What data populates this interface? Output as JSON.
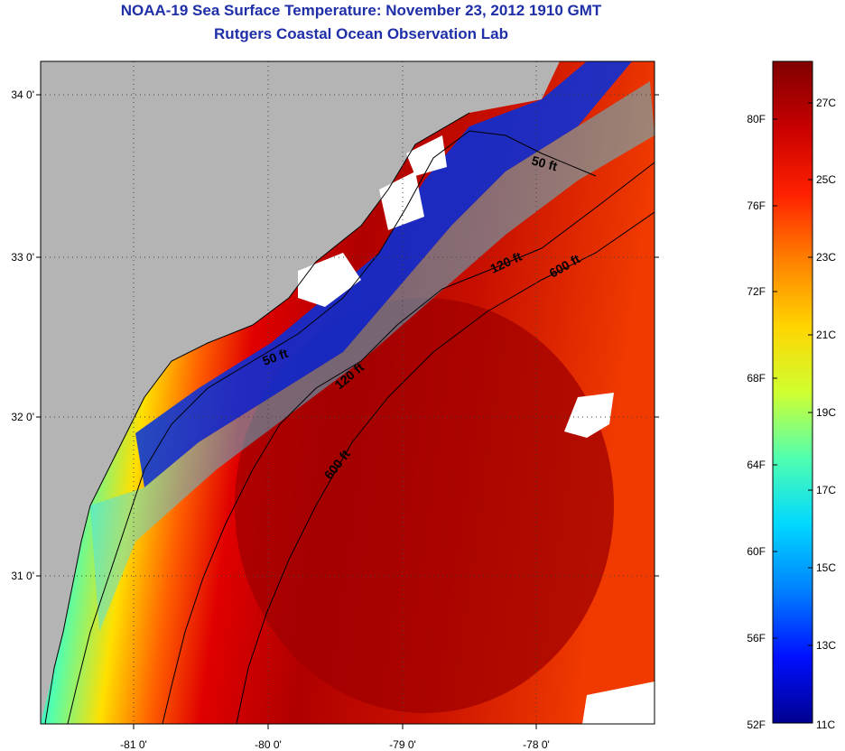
{
  "title": {
    "line1": "NOAA-19 Sea Surface Temperature:  November 23, 2012 1910 GMT",
    "line2": "Rutgers Coastal Ocean Observation Lab"
  },
  "map": {
    "lat_labels": [
      "34 0'",
      "33 0'",
      "32 0'",
      "31 0'"
    ],
    "lon_labels": [
      "-81 0'",
      "-80 0'",
      "-79 0'",
      "-78 0'"
    ],
    "contour_labels": [
      "50 ft",
      "120 ft",
      "600 ft",
      "50 ft",
      "120 ft",
      "600 ft"
    ]
  },
  "colorbar": {
    "fahrenheit": [
      "80F",
      "76F",
      "72F",
      "68F",
      "64F",
      "60F",
      "56F",
      "52F"
    ],
    "celsius": [
      "27C",
      "25C",
      "23C",
      "21C",
      "19C",
      "17C",
      "15C",
      "13C",
      "11C"
    ],
    "colors": [
      "#7f0000",
      "#c80000",
      "#ff2000",
      "#ff8000",
      "#ffd400",
      "#d0ff30",
      "#50ffb0",
      "#00d8ff",
      "#0080ff",
      "#0010ff",
      "#00008f"
    ]
  }
}
